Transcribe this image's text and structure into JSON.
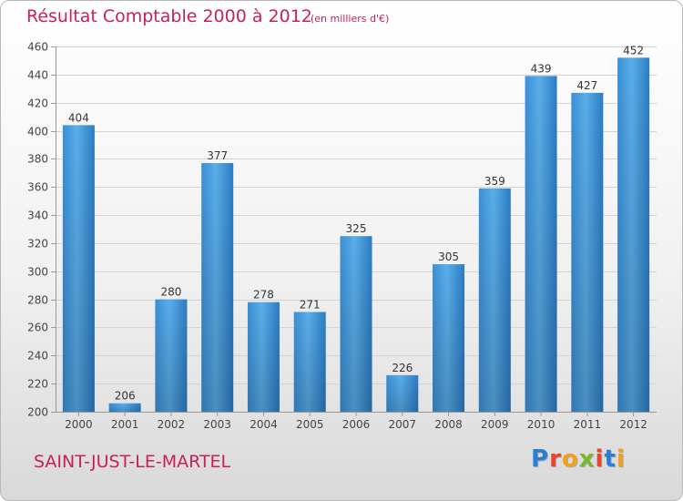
{
  "chart_data": {
    "type": "bar",
    "title": "Résultat Comptable 2000 à 2012",
    "subtitle": "(en milliers d'€)",
    "categories": [
      "2000",
      "2001",
      "2002",
      "2003",
      "2004",
      "2005",
      "2006",
      "2007",
      "2008",
      "2009",
      "2010",
      "2011",
      "2012"
    ],
    "values": [
      404,
      206,
      280,
      377,
      278,
      271,
      325,
      226,
      305,
      359,
      439,
      427,
      452
    ],
    "ylim": [
      200,
      460
    ],
    "yticks": [
      200,
      220,
      240,
      260,
      280,
      300,
      320,
      340,
      360,
      380,
      400,
      420,
      440,
      460
    ],
    "xlabel": "",
    "ylabel": "",
    "grid": true,
    "bar_color": "#4a9de0"
  },
  "footer": {
    "commune": "SAINT-JUST-LE-MARTEL",
    "logo_text": "Proxiti",
    "logo_colors": [
      "#2a7fd4",
      "#e8452c",
      "#f2a11f",
      "#7cb82f",
      "#e8452c",
      "#2a7fd4",
      "#f2a11f"
    ]
  }
}
